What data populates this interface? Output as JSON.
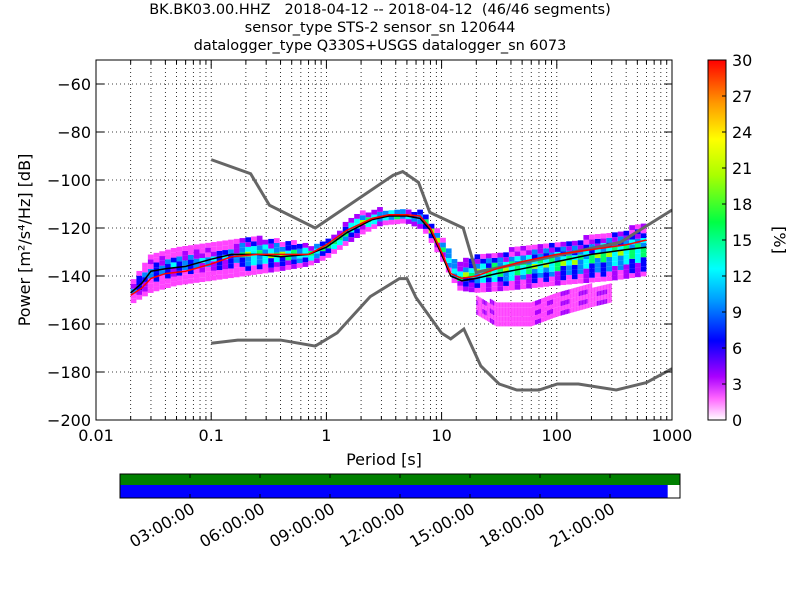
{
  "header": {
    "title_line1": "BK.BK03.00.HHZ   2018-04-12 -- 2018-04-12  (46/46 segments)",
    "title_line2": "sensor_type STS-2 sensor_sn 120644",
    "title_line3": "datalogger_type Q330S+USGS datalogger_sn 6073"
  },
  "colors": {
    "model_curves": "#666666",
    "mean_curve": "#000000",
    "mode_curve": "#ff0000",
    "coverage_top": "#008000",
    "coverage_bottom": "#0000ff"
  },
  "chart_data": {
    "type": "heatmap",
    "xlabel": "Period [s]",
    "ylabel": "Power [m²/s⁴/Hz] [dB]",
    "xscale": "log",
    "xlim": [
      0.01,
      1000
    ],
    "ylim": [
      -200,
      -50
    ],
    "x_ticks": [
      {
        "value": 0.01,
        "label": "0.01"
      },
      {
        "value": 0.1,
        "label": "0.1"
      },
      {
        "value": 1,
        "label": "1"
      },
      {
        "value": 10,
        "label": "10"
      },
      {
        "value": 100,
        "label": "100"
      },
      {
        "value": 1000,
        "label": "1000"
      }
    ],
    "y_ticks": [
      {
        "value": -60,
        "label": "−60"
      },
      {
        "value": -80,
        "label": "−80"
      },
      {
        "value": -100,
        "label": "−100"
      },
      {
        "value": -120,
        "label": "−120"
      },
      {
        "value": -140,
        "label": "−140"
      },
      {
        "value": -160,
        "label": "−160"
      },
      {
        "value": -180,
        "label": "−180"
      },
      {
        "value": -200,
        "label": "−200"
      }
    ],
    "grid": true,
    "colorbar": {
      "label": "[%]",
      "range": [
        0,
        30
      ],
      "ticks": [
        {
          "value": 0,
          "label": "0"
        },
        {
          "value": 3,
          "label": "3"
        },
        {
          "value": 6,
          "label": "6"
        },
        {
          "value": 9,
          "label": "9"
        },
        {
          "value": 12,
          "label": "12"
        },
        {
          "value": 15,
          "label": "15"
        },
        {
          "value": 18,
          "label": "18"
        },
        {
          "value": 21,
          "label": "21"
        },
        {
          "value": 24,
          "label": "24"
        },
        {
          "value": 27,
          "label": "27"
        },
        {
          "value": 30,
          "label": "30"
        }
      ]
    },
    "noise_models": [
      {
        "x": [
          0.1,
          0.22,
          0.32,
          0.8,
          3.8,
          4.6,
          6.3,
          7.9,
          15.4,
          20,
          354.8,
          1000
        ],
        "y": [
          -91.5,
          -97.4,
          -110.5,
          -120.0,
          -98.0,
          -96.5,
          -101.0,
          -113.5,
          -120.0,
          -138.5,
          -126.0,
          -112.5
        ]
      },
      {
        "x": [
          0.1,
          0.17,
          0.4,
          0.8,
          1.24,
          2.4,
          4.3,
          5.0,
          6.0,
          10.0,
          12.0,
          15.6,
          21.9,
          31.6,
          45.0,
          70.0,
          101.0,
          154.0,
          328.0,
          600.0,
          1000.0
        ],
        "y": [
          -168.0,
          -166.7,
          -166.7,
          -169.2,
          -163.7,
          -148.6,
          -141.1,
          -141.1,
          -149.0,
          -163.8,
          -166.2,
          -162.1,
          -177.5,
          -185.0,
          -187.5,
          -187.5,
          -185.0,
          -185.0,
          -187.5,
          -184.4,
          -178.6
        ]
      }
    ],
    "mode_curve": {
      "x": [
        0.02,
        0.025,
        0.03,
        0.04,
        0.06,
        0.1,
        0.15,
        0.25,
        0.4,
        0.7,
        1.0,
        1.5,
        2.5,
        3.5,
        5.0,
        6.5,
        8.0,
        10.0,
        12.0,
        15.0,
        20.0,
        30.0,
        50.0,
        100.0,
        200.0,
        400.0,
        600.0
      ],
      "y": [
        -148,
        -145,
        -141,
        -139,
        -138,
        -135,
        -132,
        -131,
        -131,
        -131,
        -127,
        -121,
        -116,
        -114.5,
        -114.5,
        -115,
        -120,
        -130,
        -139,
        -141,
        -140,
        -137,
        -134,
        -131,
        -129,
        -127,
        -125
      ]
    },
    "mean_curve": {
      "x": [
        0.02,
        0.025,
        0.03,
        0.04,
        0.06,
        0.1,
        0.15,
        0.25,
        0.4,
        0.7,
        1.0,
        1.5,
        2.5,
        3.5,
        5.0,
        6.5,
        8.0,
        10.0,
        12.0,
        15.0,
        20.0,
        30.0,
        50.0,
        100.0,
        200.0,
        400.0,
        600.0
      ],
      "y": [
        -147,
        -143,
        -138,
        -137,
        -136,
        -133,
        -131,
        -131,
        -132,
        -131,
        -128,
        -122,
        -116.5,
        -115,
        -115,
        -116,
        -121,
        -131,
        -140,
        -142,
        -141,
        -139,
        -137,
        -134,
        -131,
        -129,
        -128
      ]
    },
    "distribution_bands": [
      {
        "x": [
          0.02,
          0.03,
          0.05,
          0.1,
          0.2,
          0.4,
          0.7,
          1,
          2,
          3,
          5,
          7,
          10,
          14,
          20,
          40,
          100,
          300,
          600
        ],
        "low": [
          -152,
          -147,
          -144,
          -142,
          -140,
          -138,
          -136,
          -133,
          -123,
          -119,
          -118,
          -121,
          -133,
          -146,
          -147,
          -146,
          -144,
          -142,
          -140
        ],
        "high": [
          -144,
          -132,
          -128,
          -127,
          -124,
          -126,
          -128,
          -126,
          -114,
          -113,
          -113,
          -114,
          -124,
          -136,
          -132,
          -130,
          -127,
          -123,
          -119
        ]
      },
      {
        "x": [
          20,
          30,
          60,
          100,
          200,
          300
        ],
        "low": [
          -156,
          -161,
          -161,
          -157,
          -153,
          -151
        ],
        "high": [
          -150,
          -152,
          -152,
          -148,
          -145,
          -143
        ]
      }
    ]
  },
  "coverage": {
    "time_labels": [
      "03:00:00",
      "06:00:00",
      "09:00:00",
      "12:00:00",
      "15:00:00",
      "18:00:00",
      "21:00:00"
    ],
    "data_fraction": 0.978
  }
}
